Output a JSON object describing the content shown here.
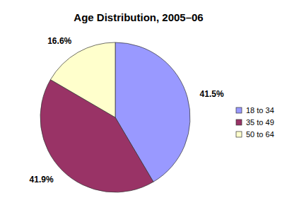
{
  "chart_data": {
    "type": "pie",
    "title": "Age Distribution, 2005–06",
    "categories": [
      "18 to 34",
      "35 to 49",
      "50 to 64"
    ],
    "values": [
      41.5,
      41.9,
      16.6
    ],
    "value_labels": [
      "41.5%",
      "41.9%",
      "16.6%"
    ],
    "colors": [
      "#9999ff",
      "#993366",
      "#ffffcc"
    ],
    "data_labels": true,
    "legend": "right"
  }
}
